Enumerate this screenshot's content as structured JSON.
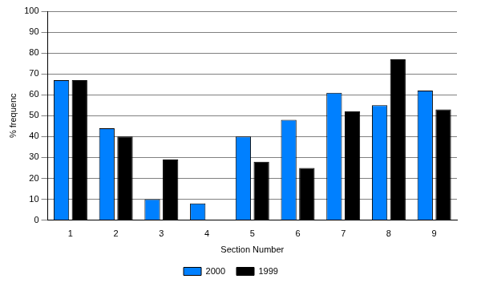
{
  "chart_data": {
    "type": "bar",
    "x_label": "Section Number",
    "y_label": "% frequenc",
    "categories": [
      "1",
      "2",
      "3",
      "4",
      "5",
      "6",
      "7",
      "8",
      "9"
    ],
    "series": [
      {
        "name": "2000",
        "color": "#0080ff",
        "values": [
          67,
          44,
          10,
          8,
          40,
          48,
          61,
          55,
          62
        ]
      },
      {
        "name": "1999",
        "color": "#000000",
        "values": [
          67,
          40,
          29,
          0,
          28,
          25,
          52,
          77,
          53
        ]
      }
    ],
    "ylim": [
      0,
      100
    ],
    "yticks": [
      0,
      10,
      20,
      30,
      40,
      50,
      60,
      70,
      80,
      90,
      100
    ],
    "grid": true,
    "legend": "bottom"
  }
}
